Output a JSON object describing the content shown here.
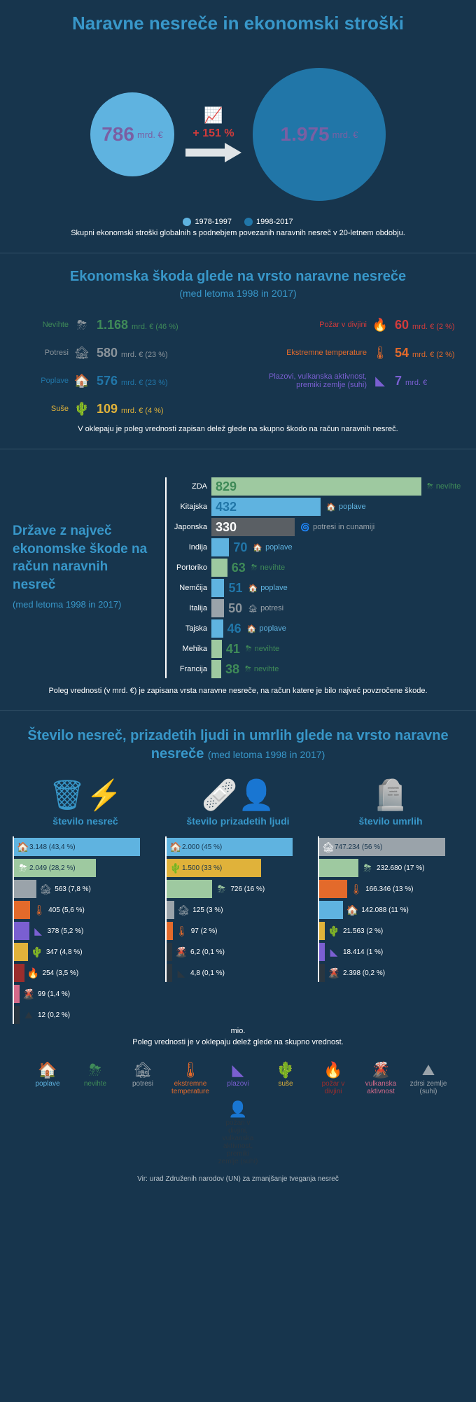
{
  "palette": {
    "bg": "#17354d",
    "accent": "#3897c9",
    "purple": "#7a5fa3",
    "red": "#d23b3b",
    "lightblue": "#5fb3e0",
    "darkblue": "#2176a8",
    "grey": "#8b949b",
    "green": "#3f8a58",
    "mint": "#9ec9a0",
    "yellow": "#e0b23a",
    "orange": "#e36a2b",
    "darkred": "#9a2d2d",
    "violet": "#7a5fd1",
    "pink": "#d46a8a",
    "dark": "#2a3640",
    "greyL": "#9aa3aa"
  },
  "title": "Naravne nesreče in ekonomski stroški",
  "bubble": {
    "left": {
      "value": "786",
      "unit": "mrd. €",
      "size": 120,
      "color": "#5fb3e0"
    },
    "right": {
      "value": "1.975",
      "unit": "mrd. €",
      "size": 190,
      "color": "#2176a8"
    },
    "growth": "+ 151 %",
    "legend": [
      {
        "color": "#5fb3e0",
        "label": "1978-1997"
      },
      {
        "color": "#2176a8",
        "label": "1998-2017"
      }
    ],
    "caption": "Skupni ekonomski stroški globalnih s podnebjem povezanih naravnih nesreč v 20-letnem obdobju."
  },
  "damage": {
    "title": "Ekonomska škoda glede na vrsto naravne nesreče",
    "subtitle": "(med letoma 1998 in 2017)",
    "left": [
      {
        "label": "Nevihte",
        "icon": "⛈",
        "iconColor": "#8b949b",
        "value": "1.168",
        "pct": "(46 %)",
        "color": "#3f8a58"
      },
      {
        "label": "Potresi",
        "icon": "🏚",
        "iconColor": "#8b949b",
        "value": "580",
        "pct": "(23 %)",
        "color": "#8b949b"
      },
      {
        "label": "Poplave",
        "icon": "🏠",
        "iconColor": "#5fb3e0",
        "value": "576",
        "pct": "(23 %)",
        "color": "#2176a8"
      },
      {
        "label": "Suše",
        "icon": "🌵",
        "iconColor": "#e0b23a",
        "value": "109",
        "pct": "(4 %)",
        "color": "#e0b23a"
      }
    ],
    "right": [
      {
        "label": "Požar v divjini",
        "icon": "🔥",
        "iconColor": "#9a2d2d",
        "value": "60",
        "pct": "(2 %)",
        "color": "#d23b3b"
      },
      {
        "label": "Ekstremne temperature",
        "icon": "🌡",
        "iconColor": "#e36a2b",
        "value": "54",
        "pct": "(2 %)",
        "color": "#e36a2b"
      },
      {
        "label": "Plazovi, vulkanska aktivnost, premiki zemlje (suhi)",
        "icon": "◣",
        "iconColor": "#7a5fd1",
        "value": "7",
        "pct": "",
        "color": "#7a5fd1"
      }
    ],
    "unit": "mrd. €",
    "note": "V oklepaju je poleg vrednosti zapisan delež glede na skupno škodo na račun naravnih nesreč."
  },
  "countries": {
    "title": "Države z največ ekonomske škode na račun naravnih nesreč",
    "subtitle": "(med letoma 1998 in 2017)",
    "max": 829,
    "barMax": 300,
    "rows": [
      {
        "name": "ZDA",
        "value": 829,
        "barColor": "#9ec9a0",
        "valColor": "#3f8a58",
        "cause": "nevihte",
        "cIcon": "⛈",
        "cColor": "#3f8a58"
      },
      {
        "name": "Kitajska",
        "value": 432,
        "barColor": "#5fb3e0",
        "valColor": "#2176a8",
        "cause": "poplave",
        "cIcon": "🏠",
        "cColor": "#5fb3e0"
      },
      {
        "name": "Japonska",
        "value": 330,
        "barColor": "#5a5f64",
        "valColor": "#ffffff",
        "cause": "potresi in cunamiji",
        "cIcon": "🌀",
        "cColor": "#9aa3aa"
      },
      {
        "name": "Indija",
        "value": 70,
        "barColor": "#5fb3e0",
        "valColor": "#2176a8",
        "cause": "poplave",
        "cIcon": "🏠",
        "cColor": "#5fb3e0"
      },
      {
        "name": "Portoriko",
        "value": 63,
        "barColor": "#9ec9a0",
        "valColor": "#3f8a58",
        "cause": "nevihte",
        "cIcon": "⛈",
        "cColor": "#3f8a58"
      },
      {
        "name": "Nemčija",
        "value": 51,
        "barColor": "#5fb3e0",
        "valColor": "#2176a8",
        "cause": "poplave",
        "cIcon": "🏠",
        "cColor": "#5fb3e0"
      },
      {
        "name": "Italija",
        "value": 50,
        "barColor": "#9aa3aa",
        "valColor": "#8b949b",
        "cause": "potresi",
        "cIcon": "🏚",
        "cColor": "#9aa3aa"
      },
      {
        "name": "Tajska",
        "value": 46,
        "barColor": "#5fb3e0",
        "valColor": "#2176a8",
        "cause": "poplave",
        "cIcon": "🏠",
        "cColor": "#5fb3e0"
      },
      {
        "name": "Mehika",
        "value": 41,
        "barColor": "#9ec9a0",
        "valColor": "#3f8a58",
        "cause": "nevihte",
        "cIcon": "⛈",
        "cColor": "#3f8a58"
      },
      {
        "name": "Francija",
        "value": 38,
        "barColor": "#9ec9a0",
        "valColor": "#3f8a58",
        "cause": "nevihte",
        "cIcon": "⛈",
        "cColor": "#3f8a58"
      }
    ],
    "note": "Poleg vrednosti (v mrd. €) je zapisana vrsta naravne nesreče, na račun katere je bilo največ povzročene škode."
  },
  "triple": {
    "title": "Število nesreč, prizadetih ljudi in umrlih glede na vrsto naravne nesreče",
    "subtitle": "(med letoma 1998 in 2017)",
    "cols": [
      {
        "icon": "🗑⚡",
        "label": "število nesreč",
        "max": 3148,
        "barMax": 180,
        "bars": [
          {
            "icon": "🏠",
            "color": "#5fb3e0",
            "v": 3148,
            "txt": "3.148 (43,4 %)"
          },
          {
            "icon": "⛈",
            "color": "#9ec9a0",
            "v": 2049,
            "txt": "2.049 (28,2 %)"
          },
          {
            "icon": "🏚",
            "color": "#9aa3aa",
            "v": 563,
            "txt": "563 (7,8 %)"
          },
          {
            "icon": "🌡",
            "color": "#e36a2b",
            "v": 405,
            "txt": "405 (5,6 %)"
          },
          {
            "icon": "◣",
            "color": "#7a5fd1",
            "v": 378,
            "txt": "378 (5,2 %)"
          },
          {
            "icon": "🌵",
            "color": "#e0b23a",
            "v": 347,
            "txt": "347 (4,8 %)"
          },
          {
            "icon": "🔥",
            "color": "#9a2d2d",
            "v": 254,
            "txt": "254 (3,5 %)"
          },
          {
            "icon": "🌋",
            "color": "#d46a8a",
            "v": 99,
            "txt": "99 (1,4 %)"
          },
          {
            "icon": "⛰",
            "color": "#2a3640",
            "v": 12,
            "txt": "12 (0,2 %)"
          }
        ]
      },
      {
        "icon": "🩹👤",
        "label": "število prizadetih ljudi",
        "max": 2000,
        "barMax": 180,
        "bars": [
          {
            "icon": "🏠",
            "color": "#5fb3e0",
            "v": 2000,
            "txt": "2.000 (45 %)"
          },
          {
            "icon": "🌵",
            "color": "#e0b23a",
            "v": 1500,
            "txt": "1.500 (33 %)"
          },
          {
            "icon": "⛈",
            "color": "#9ec9a0",
            "v": 726,
            "txt": "726 (16 %)"
          },
          {
            "icon": "🏚",
            "color": "#9aa3aa",
            "v": 125,
            "txt": "125 (3 %)"
          },
          {
            "icon": "🌡",
            "color": "#e36a2b",
            "v": 97,
            "txt": "97 (2 %)"
          },
          {
            "icon": "🌋",
            "color": "#2a3640",
            "v": 6.2,
            "txt": "6,2 (0,1 %)"
          },
          {
            "icon": "◣",
            "color": "#2a3640",
            "v": 4.8,
            "txt": "4,8 (0,1 %)"
          }
        ]
      },
      {
        "icon": "🪦",
        "label": "število umrlih",
        "max": 747234,
        "barMax": 180,
        "bars": [
          {
            "icon": "🏚",
            "color": "#9aa3aa",
            "v": 747234,
            "txt": "747.234 (56 %)"
          },
          {
            "icon": "⛈",
            "color": "#9ec9a0",
            "v": 232680,
            "txt": "232.680 (17 %)"
          },
          {
            "icon": "🌡",
            "color": "#e36a2b",
            "v": 166346,
            "txt": "166.346 (13 %)"
          },
          {
            "icon": "🏠",
            "color": "#5fb3e0",
            "v": 142088,
            "txt": "142.088 (11 %)"
          },
          {
            "icon": "🌵",
            "color": "#e0b23a",
            "v": 21563,
            "txt": "21.563 (2 %)"
          },
          {
            "icon": "◣",
            "color": "#7a5fd1",
            "v": 18414,
            "txt": "18.414 (1 %)"
          },
          {
            "icon": "🌋",
            "color": "#2a3640",
            "v": 2398,
            "txt": "2.398 (0,2 %)"
          }
        ]
      }
    ],
    "mio": "mio.",
    "note": "Poleg vrednosti je v oklepaju delež glede na skupno vrednost."
  },
  "bottomLegend": [
    {
      "icon": "🏠",
      "color": "#5fb3e0",
      "label": "poplave"
    },
    {
      "icon": "⛈",
      "color": "#3f8a58",
      "label": "nevihte"
    },
    {
      "icon": "🏚",
      "color": "#9aa3aa",
      "label": "potresi"
    },
    {
      "icon": "🌡",
      "color": "#e36a2b",
      "label": "ekstremne temperature"
    },
    {
      "icon": "◣",
      "color": "#7a5fd1",
      "label": "plazovi"
    },
    {
      "icon": "🌵",
      "color": "#e0b23a",
      "label": "suše"
    },
    {
      "icon": "🔥",
      "color": "#9a2d2d",
      "label": "požar v divjini"
    },
    {
      "icon": "🌋",
      "color": "#d46a8a",
      "label": "vulkanska aktivnost"
    },
    {
      "icon": "⛰",
      "color": "#9aa3aa",
      "label": "zdrsi zemlje (suhi)"
    },
    {
      "icon": "👤",
      "color": "#2a3640",
      "label": "požari v divjini, vulkanska aktivnost, premiki zemlje (suhi)"
    }
  ],
  "source": "Vir: urad Združenih narodov (UN) za zmanjšanje tveganja nesreč"
}
